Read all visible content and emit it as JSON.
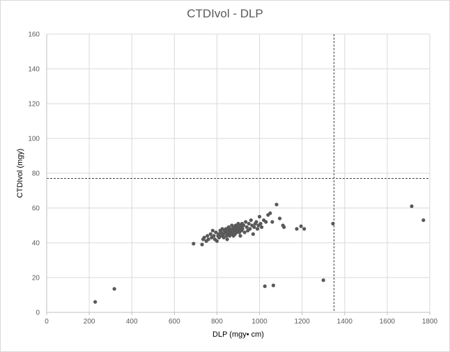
{
  "chart_data": {
    "type": "scatter",
    "title": "CTDIvol - DLP",
    "xlabel": "DLP (mgy• cm)",
    "ylabel": "CTDIvol (mgy)",
    "xlim": [
      0,
      1800
    ],
    "ylim": [
      0,
      160
    ],
    "xticks": [
      0,
      200,
      400,
      600,
      800,
      1000,
      1200,
      1400,
      1600,
      1800
    ],
    "yticks": [
      0,
      20,
      40,
      60,
      80,
      100,
      120,
      140,
      160
    ],
    "grid": true,
    "legend": "none",
    "reference_lines": {
      "x": 1350,
      "y": 77
    },
    "colors": {
      "point": "#595959",
      "grid": "#d9d9d9",
      "reference": "#404040"
    },
    "points": [
      [
        228,
        6
      ],
      [
        318,
        13.5
      ],
      [
        690,
        39.5
      ],
      [
        730,
        39
      ],
      [
        735,
        42
      ],
      [
        740,
        43
      ],
      [
        750,
        41
      ],
      [
        755,
        44
      ],
      [
        760,
        42
      ],
      [
        770,
        45
      ],
      [
        775,
        43
      ],
      [
        780,
        47
      ],
      [
        785,
        44
      ],
      [
        790,
        42
      ],
      [
        795,
        46
      ],
      [
        800,
        41
      ],
      [
        805,
        44
      ],
      [
        808,
        45
      ],
      [
        810,
        43
      ],
      [
        815,
        47
      ],
      [
        820,
        46
      ],
      [
        822,
        44
      ],
      [
        825,
        48
      ],
      [
        830,
        45
      ],
      [
        832,
        43
      ],
      [
        835,
        47
      ],
      [
        840,
        46
      ],
      [
        842,
        48
      ],
      [
        845,
        44
      ],
      [
        848,
        42
      ],
      [
        850,
        47
      ],
      [
        852,
        45
      ],
      [
        855,
        49
      ],
      [
        858,
        46
      ],
      [
        860,
        44
      ],
      [
        862,
        48
      ],
      [
        865,
        47
      ],
      [
        868,
        45
      ],
      [
        870,
        50
      ],
      [
        872,
        46
      ],
      [
        875,
        48
      ],
      [
        878,
        44
      ],
      [
        880,
        49
      ],
      [
        882,
        47
      ],
      [
        885,
        45
      ],
      [
        888,
        50
      ],
      [
        890,
        48
      ],
      [
        892,
        46
      ],
      [
        895,
        49
      ],
      [
        898,
        47
      ],
      [
        900,
        51
      ],
      [
        902,
        48
      ],
      [
        905,
        46
      ],
      [
        908,
        50
      ],
      [
        910,
        44
      ],
      [
        912,
        49
      ],
      [
        915,
        47
      ],
      [
        918,
        51
      ],
      [
        920,
        48
      ],
      [
        925,
        50
      ],
      [
        930,
        46
      ],
      [
        935,
        52
      ],
      [
        940,
        49
      ],
      [
        945,
        47
      ],
      [
        950,
        51
      ],
      [
        955,
        48
      ],
      [
        960,
        53
      ],
      [
        965,
        50
      ],
      [
        970,
        45
      ],
      [
        975,
        49
      ],
      [
        980,
        51
      ],
      [
        985,
        52
      ],
      [
        990,
        48
      ],
      [
        995,
        50
      ],
      [
        1000,
        55
      ],
      [
        1005,
        51
      ],
      [
        1010,
        49
      ],
      [
        1020,
        53
      ],
      [
        1030,
        52
      ],
      [
        1040,
        56
      ],
      [
        1050,
        57
      ],
      [
        1060,
        52
      ],
      [
        1080,
        62
      ],
      [
        1095,
        54
      ],
      [
        1110,
        50
      ],
      [
        1115,
        49
      ],
      [
        1175,
        48
      ],
      [
        1195,
        49.5
      ],
      [
        1210,
        48
      ],
      [
        1345,
        51
      ],
      [
        1025,
        15
      ],
      [
        1065,
        15.5
      ],
      [
        1300,
        18.5
      ],
      [
        1715,
        61
      ],
      [
        1770,
        53
      ]
    ]
  }
}
